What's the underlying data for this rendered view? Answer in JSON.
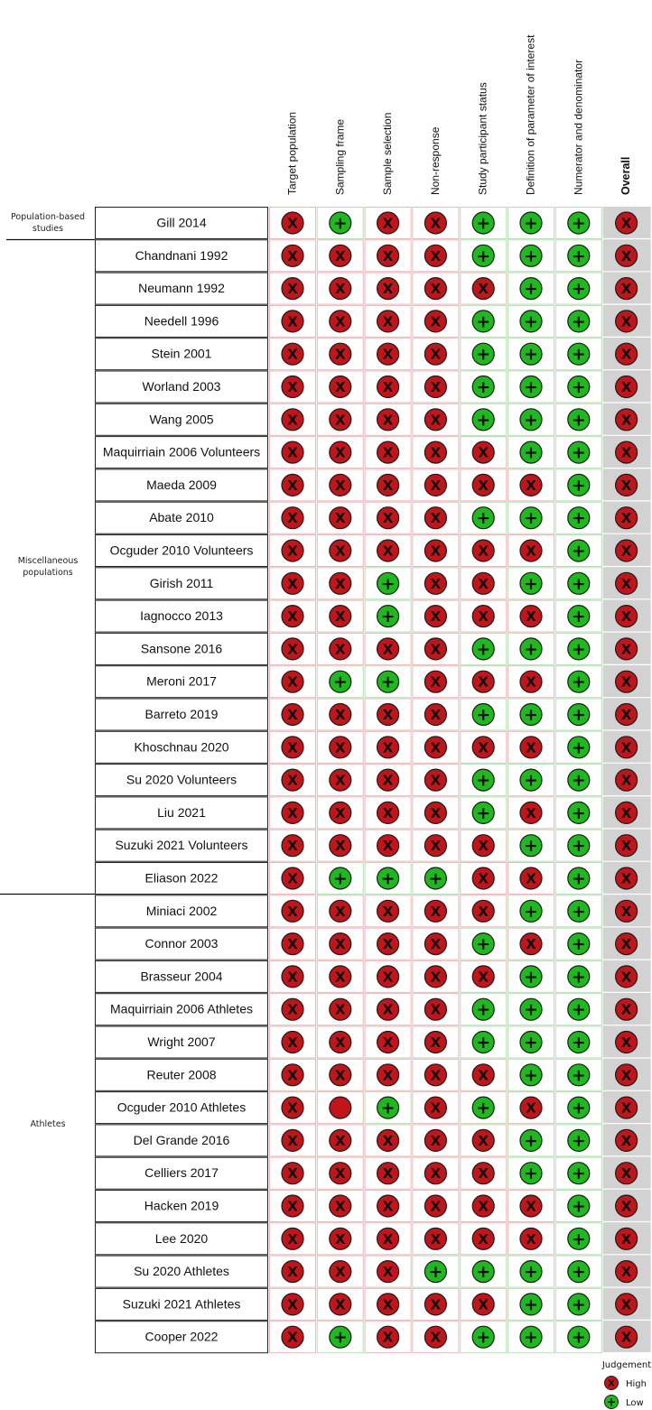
{
  "chart_data": {
    "type": "table",
    "columns": [
      "Target population",
      "Sampling frame",
      "Sample selection",
      "Non-response",
      "Study participant status",
      "Definition of parameter of interest",
      "Numerator and denominator",
      "Overall"
    ],
    "groups": [
      {
        "label": "Population-based studies",
        "lines": [
          "Population-based",
          "studies"
        ],
        "start": 0,
        "end": 0
      },
      {
        "label": "Miscellaneous populations",
        "lines": [
          "Miscellaneous",
          "populations"
        ],
        "start": 1,
        "end": 20
      },
      {
        "label": "Athletes",
        "lines": [
          "Athletes"
        ],
        "start": 21,
        "end": 34
      }
    ],
    "studies": [
      {
        "name": "Gill 2014",
        "ratings": [
          "H",
          "L",
          "H",
          "H",
          "L",
          "L",
          "L",
          "H"
        ]
      },
      {
        "name": "Chandnani 1992",
        "ratings": [
          "H",
          "H",
          "H",
          "H",
          "L",
          "L",
          "L",
          "H"
        ]
      },
      {
        "name": "Neumann 1992",
        "ratings": [
          "H",
          "H",
          "H",
          "H",
          "H",
          "L",
          "L",
          "H"
        ]
      },
      {
        "name": "Needell 1996",
        "ratings": [
          "H",
          "H",
          "H",
          "H",
          "L",
          "L",
          "L",
          "H"
        ]
      },
      {
        "name": "Stein 2001",
        "ratings": [
          "H",
          "H",
          "H",
          "H",
          "L",
          "L",
          "L",
          "H"
        ]
      },
      {
        "name": "Worland 2003",
        "ratings": [
          "H",
          "H",
          "H",
          "H",
          "L",
          "L",
          "L",
          "H"
        ]
      },
      {
        "name": "Wang 2005",
        "ratings": [
          "H",
          "H",
          "H",
          "H",
          "L",
          "L",
          "L",
          "H"
        ]
      },
      {
        "name": "Maquirriain 2006 Volunteers",
        "ratings": [
          "H",
          "H",
          "H",
          "H",
          "H",
          "L",
          "L",
          "H"
        ]
      },
      {
        "name": "Maeda 2009",
        "ratings": [
          "H",
          "H",
          "H",
          "H",
          "H",
          "H",
          "L",
          "H"
        ]
      },
      {
        "name": "Abate 2010",
        "ratings": [
          "H",
          "H",
          "H",
          "H",
          "L",
          "L",
          "L",
          "H"
        ]
      },
      {
        "name": "Ocguder 2010 Volunteers",
        "ratings": [
          "H",
          "H",
          "H",
          "H",
          "H",
          "H",
          "L",
          "H"
        ]
      },
      {
        "name": "Girish 2011",
        "ratings": [
          "H",
          "H",
          "L",
          "H",
          "H",
          "L",
          "L",
          "H"
        ]
      },
      {
        "name": "Iagnocco 2013",
        "ratings": [
          "H",
          "H",
          "L",
          "H",
          "H",
          "H",
          "L",
          "H"
        ]
      },
      {
        "name": "Sansone 2016",
        "ratings": [
          "H",
          "H",
          "H",
          "H",
          "L",
          "L",
          "L",
          "H"
        ]
      },
      {
        "name": "Meroni 2017",
        "ratings": [
          "H",
          "L",
          "L",
          "H",
          "H",
          "H",
          "L",
          "H"
        ]
      },
      {
        "name": "Barreto 2019",
        "ratings": [
          "H",
          "H",
          "H",
          "H",
          "L",
          "L",
          "L",
          "H"
        ]
      },
      {
        "name": "Khoschnau 2020",
        "ratings": [
          "H",
          "H",
          "H",
          "H",
          "H",
          "H",
          "L",
          "H"
        ]
      },
      {
        "name": "Su 2020 Volunteers",
        "ratings": [
          "H",
          "H",
          "H",
          "H",
          "L",
          "L",
          "L",
          "H"
        ]
      },
      {
        "name": "Liu 2021",
        "ratings": [
          "H",
          "H",
          "H",
          "H",
          "L",
          "H",
          "L",
          "H"
        ]
      },
      {
        "name": "Suzuki 2021 Volunteers",
        "ratings": [
          "H",
          "H",
          "H",
          "H",
          "H",
          "L",
          "L",
          "H"
        ]
      },
      {
        "name": "Eliason 2022",
        "ratings": [
          "H",
          "L",
          "L",
          "L",
          "H",
          "H",
          "L",
          "H"
        ]
      },
      {
        "name": "Miniaci 2002",
        "ratings": [
          "H",
          "H",
          "H",
          "H",
          "H",
          "L",
          "L",
          "H"
        ]
      },
      {
        "name": "Connor 2003",
        "ratings": [
          "H",
          "H",
          "H",
          "H",
          "L",
          "H",
          "L",
          "H"
        ]
      },
      {
        "name": "Brasseur 2004",
        "ratings": [
          "H",
          "H",
          "H",
          "H",
          "H",
          "L",
          "L",
          "H"
        ]
      },
      {
        "name": "Maquirriain 2006 Athletes",
        "ratings": [
          "H",
          "H",
          "H",
          "H",
          "L",
          "L",
          "L",
          "H"
        ]
      },
      {
        "name": "Wright 2007",
        "ratings": [
          "H",
          "H",
          "H",
          "H",
          "L",
          "L",
          "L",
          "H"
        ]
      },
      {
        "name": "Reuter 2008",
        "ratings": [
          "H",
          "H",
          "H",
          "H",
          "H",
          "L",
          "L",
          "H"
        ]
      },
      {
        "name": "Ocguder 2010 Athletes",
        "ratings": [
          "H",
          "H0",
          "L",
          "H",
          "L",
          "H",
          "L",
          "H"
        ]
      },
      {
        "name": "Del Grande 2016",
        "ratings": [
          "H",
          "H",
          "H",
          "H",
          "H",
          "L",
          "L",
          "H"
        ]
      },
      {
        "name": "Celliers 2017",
        "ratings": [
          "H",
          "H",
          "H",
          "H",
          "H",
          "L",
          "L",
          "H"
        ]
      },
      {
        "name": "Hacken 2019",
        "ratings": [
          "H",
          "H",
          "H",
          "H",
          "H",
          "H",
          "L",
          "H"
        ]
      },
      {
        "name": "Lee 2020",
        "ratings": [
          "H",
          "H",
          "H",
          "H",
          "H",
          "H",
          "L",
          "H"
        ]
      },
      {
        "name": "Su 2020 Athletes",
        "ratings": [
          "H",
          "H",
          "H",
          "L",
          "L",
          "L",
          "L",
          "H"
        ]
      },
      {
        "name": "Suzuki 2021 Athletes",
        "ratings": [
          "H",
          "H",
          "H",
          "H",
          "H",
          "L",
          "L",
          "H"
        ]
      },
      {
        "name": "Cooper 2022",
        "ratings": [
          "H",
          "L",
          "H",
          "H",
          "L",
          "L",
          "L",
          "H"
        ]
      }
    ],
    "legend": {
      "title": "Judgement",
      "items": [
        {
          "key": "H",
          "label": "High",
          "symbol": "X"
        },
        {
          "key": "L",
          "label": "Low",
          "symbol": "+"
        }
      ]
    }
  },
  "colors": {
    "high": "#c0151b",
    "low": "#1fb81f",
    "cell_high_border": "#e8b9b9",
    "cell_low_border": "#b8dfb8",
    "overall_bg": "#d2d2d2"
  }
}
